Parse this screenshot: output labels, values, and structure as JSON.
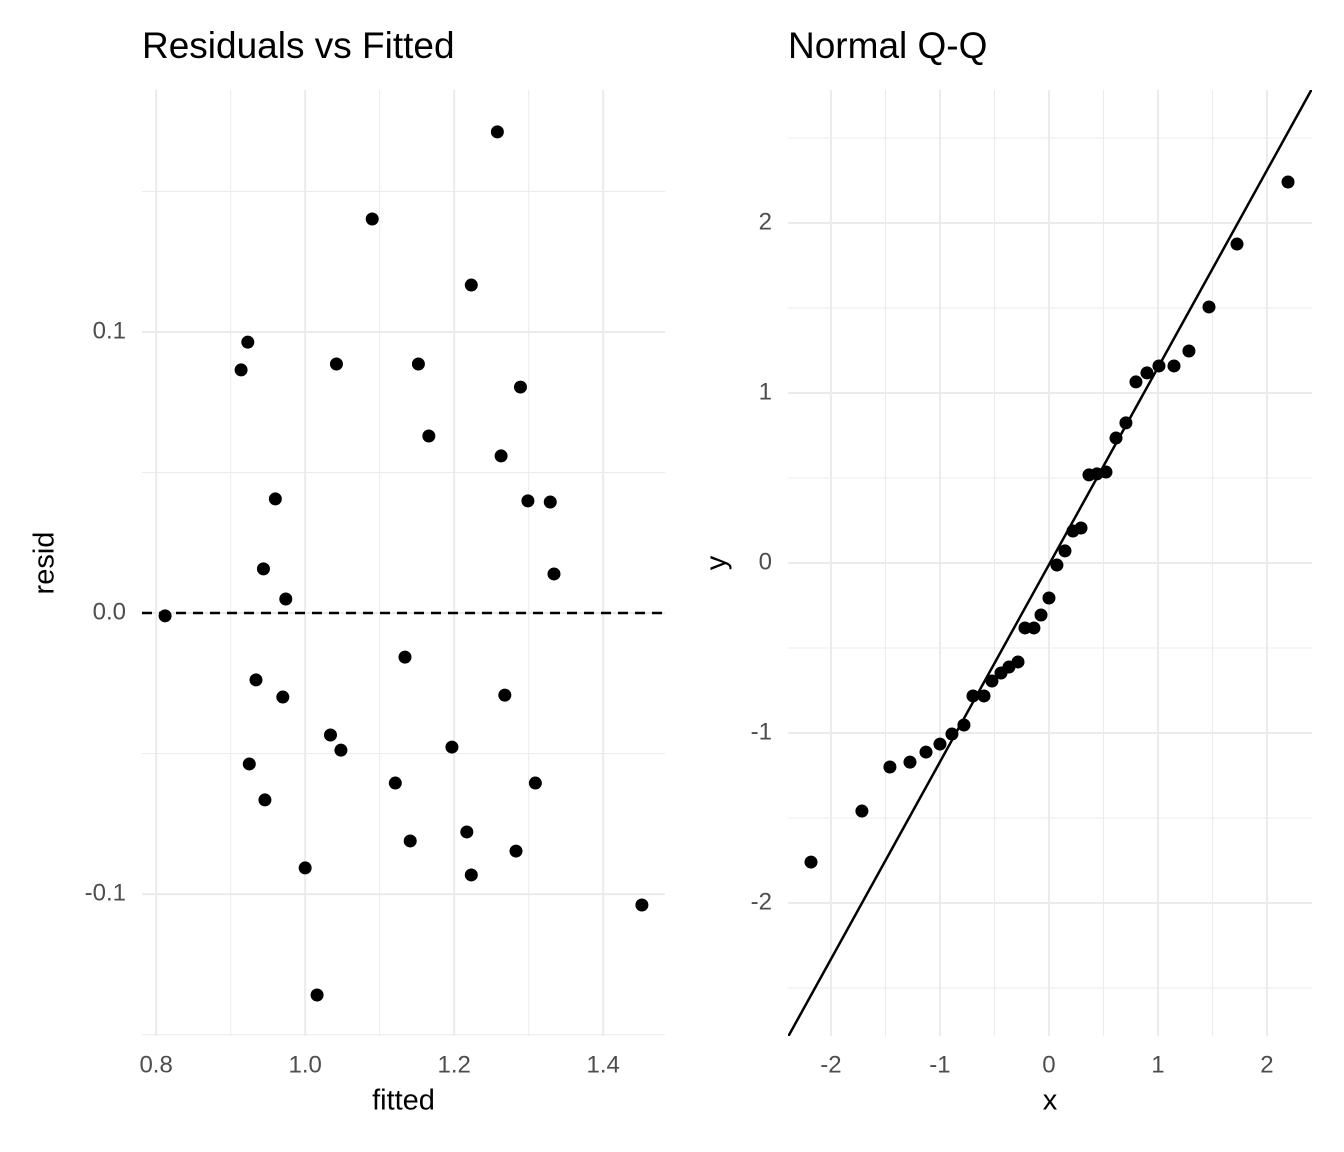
{
  "chart_data": [
    {
      "type": "scatter",
      "title": "Residuals vs Fitted",
      "x_label": "fitted",
      "y_label": "resid",
      "color": "#000000",
      "xlim": [
        0.781,
        1.483
      ],
      "ylim": [
        -0.1505,
        0.1861
      ],
      "xticks": [
        0.8,
        {
          "value": 1.0,
          "label": "1.0"
        },
        1.2,
        1.4
      ],
      "yticks": [
        -0.1,
        {
          "value": 0,
          "label": "0.0"
        },
        0.1
      ],
      "xminor": [
        0.9,
        1.1,
        1.3
      ],
      "yminor": [
        -0.15,
        -0.05,
        0.05,
        0.15
      ],
      "grid": true,
      "hline": 0,
      "x": [
        0.812,
        0.923,
        0.914,
        0.96,
        0.944,
        0.974,
        0.934,
        0.97,
        0.925,
        0.946,
        1.0,
        1.016,
        1.034,
        1.048,
        1.042,
        1.09,
        1.134,
        1.121,
        1.141,
        1.152,
        1.166,
        1.197,
        1.223,
        1.258,
        1.217,
        1.223,
        1.263,
        1.268,
        1.289,
        1.283,
        1.299,
        1.309,
        1.329,
        1.334,
        1.452
      ],
      "values": [
        -0.001,
        0.0964,
        0.0865,
        0.0406,
        0.0157,
        0.005,
        -0.0238,
        -0.0299,
        -0.0537,
        -0.0665,
        -0.0907,
        -0.1359,
        -0.0434,
        -0.0488,
        0.0886,
        0.1402,
        -0.0157,
        -0.0605,
        -0.0811,
        0.0886,
        0.063,
        -0.0477,
        0.1167,
        0.1712,
        -0.0779,
        -0.0932,
        0.0559,
        -0.0292,
        0.0804,
        -0.0847,
        0.0399,
        -0.0605,
        0.0395,
        0.0139,
        -0.1039
      ]
    },
    {
      "type": "scatter",
      "title": "Normal Q-Q",
      "x_label": "x",
      "y_label": "y",
      "color": "#000000",
      "xlim": [
        -2.394,
        2.413
      ],
      "ylim": [
        -2.782,
        2.782
      ],
      "xticks": [
        -2,
        -1,
        0,
        1,
        2
      ],
      "yticks": [
        -2,
        -1,
        0,
        1,
        2
      ],
      "xminor": [
        -1.5,
        -0.5,
        0.5,
        1.5
      ],
      "yminor": [
        -2.5,
        -1.5,
        -0.5,
        0.5,
        1.5,
        2.5
      ],
      "grid": true,
      "line": {
        "intercept": -0.01,
        "slope": 1.16
      },
      "x": [
        -2.183,
        -1.716,
        -1.459,
        -1.275,
        -1.128,
        -1.0,
        -0.89,
        -0.78,
        -0.697,
        -0.596,
        -0.523,
        -0.44,
        -0.367,
        -0.284,
        -0.22,
        -0.138,
        -0.073,
        0.0,
        0.073,
        0.147,
        0.22,
        0.294,
        0.367,
        0.44,
        0.523,
        0.615,
        0.706,
        0.798,
        0.899,
        1.009,
        1.147,
        1.284,
        1.468,
        1.725,
        2.193
      ],
      "values": [
        -1.759,
        -1.459,
        -1.2,
        -1.171,
        -1.112,
        -1.065,
        -1.006,
        -0.953,
        -0.782,
        -0.782,
        -0.694,
        -0.647,
        -0.612,
        -0.582,
        -0.382,
        -0.382,
        -0.306,
        -0.206,
        -0.012,
        0.071,
        0.188,
        0.206,
        0.518,
        0.524,
        0.535,
        0.735,
        0.824,
        1.065,
        1.118,
        1.159,
        1.159,
        1.247,
        1.506,
        1.876,
        2.241
      ]
    }
  ]
}
